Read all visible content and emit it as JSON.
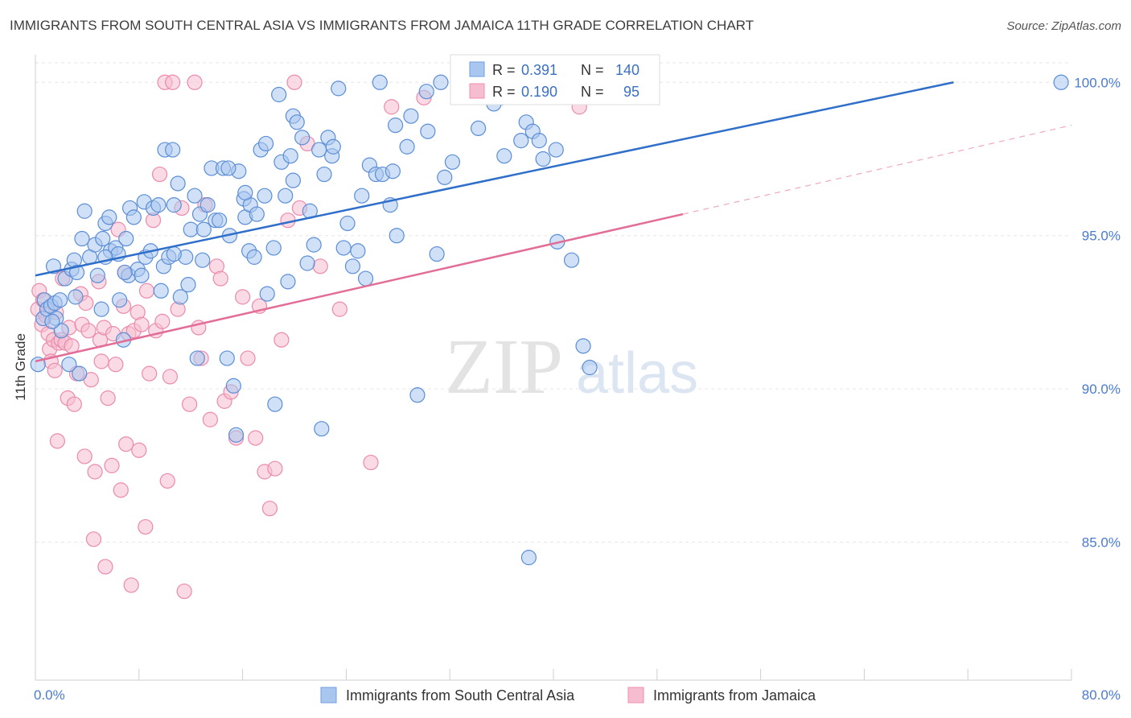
{
  "header": {
    "title": "IMMIGRANTS FROM SOUTH CENTRAL ASIA VS IMMIGRANTS FROM JAMAICA 11TH GRADE CORRELATION CHART",
    "source": "Source: ZipAtlas.com"
  },
  "watermark": {
    "zip": "ZIP",
    "atlas": "atlas"
  },
  "stats_legend": {
    "r_label": "R =",
    "n_label": "N =",
    "rows": [
      {
        "r": "0.391",
        "n": "140",
        "color": "#6f9de0"
      },
      {
        "r": "0.190",
        "n": "95",
        "color": "#f08eb0"
      }
    ]
  },
  "colors": {
    "blue_fill": "#a9c6ef",
    "blue_stroke": "#5b8ed6",
    "blue_line": "#2f6fc9",
    "pink_fill": "#f6bdd0",
    "pink_stroke": "#eb8aaa",
    "pink_line": "#e26e97"
  },
  "chart_data": {
    "type": "scatter",
    "title": "IMMIGRANTS FROM SOUTH CENTRAL ASIA VS IMMIGRANTS FROM JAMAICA 11TH GRADE CORRELATION CHART",
    "xlabel": "",
    "ylabel": "11th Grade",
    "x_tick_labels": [
      "0.0%",
      "80.0%"
    ],
    "y_tick_labels": [
      "85.0%",
      "90.0%",
      "95.0%",
      "100.0%"
    ],
    "y_ticks": [
      85,
      90,
      95,
      100
    ],
    "xlim": [
      0,
      80
    ],
    "ylim": [
      80.5,
      100.9
    ],
    "grid": true,
    "legend_position": "top",
    "series": [
      {
        "name": "Immigrants from South Central Asia",
        "r": 0.391,
        "n": 140,
        "trend": {
          "x": [
            0,
            70.9
          ],
          "y": [
            93.7,
            100.0
          ]
        },
        "points": [
          [
            0.2,
            90.8
          ],
          [
            0.6,
            92.3
          ],
          [
            0.7,
            92.9
          ],
          [
            0.9,
            92.6
          ],
          [
            1.2,
            92.7
          ],
          [
            1.4,
            94.0
          ],
          [
            1.5,
            92.8
          ],
          [
            1.6,
            92.3
          ],
          [
            1.9,
            92.9
          ],
          [
            2.3,
            93.6
          ],
          [
            2.6,
            90.8
          ],
          [
            2.8,
            93.9
          ],
          [
            3.0,
            94.2
          ],
          [
            3.2,
            93.8
          ],
          [
            3.4,
            90.5
          ],
          [
            3.6,
            94.9
          ],
          [
            3.8,
            95.8
          ],
          [
            4.2,
            94.3
          ],
          [
            4.6,
            94.7
          ],
          [
            4.8,
            93.7
          ],
          [
            5.1,
            92.6
          ],
          [
            5.2,
            94.9
          ],
          [
            5.4,
            95.4
          ],
          [
            5.7,
            95.6
          ],
          [
            5.8,
            94.5
          ],
          [
            6.2,
            94.6
          ],
          [
            6.4,
            94.4
          ],
          [
            6.5,
            92.9
          ],
          [
            6.8,
            91.6
          ],
          [
            7.0,
            94.9
          ],
          [
            7.2,
            93.7
          ],
          [
            7.3,
            95.9
          ],
          [
            7.6,
            95.6
          ],
          [
            7.9,
            93.9
          ],
          [
            8.2,
            93.7
          ],
          [
            8.4,
            96.1
          ],
          [
            8.5,
            94.3
          ],
          [
            8.9,
            94.5
          ],
          [
            9.1,
            95.9
          ],
          [
            9.5,
            96.0
          ],
          [
            9.7,
            93.2
          ],
          [
            9.9,
            94.0
          ],
          [
            10.0,
            97.8
          ],
          [
            10.3,
            94.3
          ],
          [
            10.6,
            97.8
          ],
          [
            10.7,
            96.0
          ],
          [
            11.0,
            96.7
          ],
          [
            11.2,
            93.0
          ],
          [
            11.6,
            94.3
          ],
          [
            11.8,
            93.4
          ],
          [
            12.0,
            95.2
          ],
          [
            12.3,
            96.3
          ],
          [
            12.5,
            91.0
          ],
          [
            12.7,
            95.7
          ],
          [
            13.0,
            95.2
          ],
          [
            13.3,
            96.0
          ],
          [
            13.6,
            97.2
          ],
          [
            13.9,
            95.5
          ],
          [
            14.2,
            95.5
          ],
          [
            14.5,
            97.2
          ],
          [
            14.8,
            91.0
          ],
          [
            15.0,
            95.0
          ],
          [
            15.3,
            90.1
          ],
          [
            15.5,
            88.5
          ],
          [
            15.7,
            97.1
          ],
          [
            16.1,
            96.2
          ],
          [
            16.2,
            95.6
          ],
          [
            16.5,
            94.5
          ],
          [
            16.6,
            96.0
          ],
          [
            16.9,
            94.3
          ],
          [
            17.1,
            95.7
          ],
          [
            17.4,
            97.8
          ],
          [
            17.7,
            96.3
          ],
          [
            17.8,
            98.0
          ],
          [
            17.9,
            93.1
          ],
          [
            18.4,
            94.6
          ],
          [
            18.5,
            89.5
          ],
          [
            18.8,
            99.6
          ],
          [
            19.0,
            97.4
          ],
          [
            19.3,
            96.3
          ],
          [
            19.5,
            93.5
          ],
          [
            19.7,
            97.6
          ],
          [
            19.9,
            98.9
          ],
          [
            20.2,
            98.7
          ],
          [
            20.6,
            98.2
          ],
          [
            21.0,
            94.1
          ],
          [
            21.2,
            95.8
          ],
          [
            21.5,
            94.7
          ],
          [
            21.9,
            97.8
          ],
          [
            22.1,
            88.7
          ],
          [
            22.3,
            97.0
          ],
          [
            22.6,
            98.2
          ],
          [
            22.9,
            97.6
          ],
          [
            23.0,
            97.9
          ],
          [
            23.4,
            99.8
          ],
          [
            23.8,
            94.6
          ],
          [
            24.1,
            95.4
          ],
          [
            24.5,
            94.0
          ],
          [
            24.9,
            94.5
          ],
          [
            25.2,
            96.3
          ],
          [
            25.5,
            93.6
          ],
          [
            25.8,
            97.3
          ],
          [
            26.3,
            97.0
          ],
          [
            26.6,
            100.0
          ],
          [
            26.8,
            97.0
          ],
          [
            27.4,
            96.0
          ],
          [
            27.6,
            97.1
          ],
          [
            27.8,
            98.6
          ],
          [
            28.7,
            97.9
          ],
          [
            29.0,
            98.9
          ],
          [
            29.5,
            89.8
          ],
          [
            30.2,
            99.7
          ],
          [
            30.3,
            98.4
          ],
          [
            31.0,
            94.4
          ],
          [
            31.3,
            100.0
          ],
          [
            31.6,
            96.9
          ],
          [
            32.2,
            97.4
          ],
          [
            33.0,
            100.0
          ],
          [
            34.2,
            98.5
          ],
          [
            35.4,
            99.3
          ],
          [
            36.0,
            99.5
          ],
          [
            36.2,
            97.6
          ],
          [
            37.5,
            98.1
          ],
          [
            37.9,
            98.7
          ],
          [
            38.1,
            84.5
          ],
          [
            38.4,
            98.4
          ],
          [
            38.9,
            98.1
          ],
          [
            39.2,
            97.5
          ],
          [
            40.2,
            97.8
          ],
          [
            40.3,
            94.8
          ],
          [
            41.4,
            94.2
          ],
          [
            42.3,
            91.4
          ],
          [
            42.8,
            90.7
          ],
          [
            43.5,
            100.0
          ],
          [
            36.5,
            99.8
          ],
          [
            34.8,
            99.9
          ],
          [
            16.2,
            96.4
          ],
          [
            14.9,
            97.2
          ],
          [
            19.9,
            96.8
          ],
          [
            12.9,
            94.2
          ],
          [
            10.7,
            94.4
          ],
          [
            6.9,
            93.8
          ],
          [
            5.4,
            94.3
          ],
          [
            3.1,
            93.0
          ],
          [
            2.0,
            91.9
          ],
          [
            1.3,
            92.2
          ],
          [
            27.9,
            95.0
          ],
          [
            79.2,
            100.0
          ]
        ]
      },
      {
        "name": "Immigrants from Jamaica",
        "r": 0.19,
        "n": 95,
        "trend": {
          "x": [
            0,
            50
          ],
          "y": [
            90.9,
            95.7
          ]
        },
        "trend_extension": {
          "x": [
            50,
            80
          ],
          "y": [
            95.7,
            98.6
          ]
        },
        "points": [
          [
            0.2,
            92.6
          ],
          [
            0.3,
            93.2
          ],
          [
            0.5,
            92.1
          ],
          [
            0.6,
            92.9
          ],
          [
            0.8,
            92.4
          ],
          [
            1.0,
            91.8
          ],
          [
            1.1,
            91.3
          ],
          [
            1.2,
            90.9
          ],
          [
            1.4,
            91.6
          ],
          [
            1.5,
            90.6
          ],
          [
            1.7,
            88.3
          ],
          [
            1.8,
            91.5
          ],
          [
            2.0,
            91.6
          ],
          [
            2.1,
            93.6
          ],
          [
            2.3,
            91.5
          ],
          [
            2.5,
            89.7
          ],
          [
            2.6,
            92.0
          ],
          [
            2.8,
            91.4
          ],
          [
            3.0,
            89.5
          ],
          [
            3.2,
            90.5
          ],
          [
            3.5,
            93.1
          ],
          [
            3.6,
            92.1
          ],
          [
            3.8,
            87.8
          ],
          [
            3.9,
            92.8
          ],
          [
            4.1,
            91.9
          ],
          [
            4.3,
            90.3
          ],
          [
            4.5,
            85.1
          ],
          [
            4.6,
            87.3
          ],
          [
            4.9,
            93.5
          ],
          [
            5.0,
            91.6
          ],
          [
            5.1,
            90.9
          ],
          [
            5.3,
            92.0
          ],
          [
            5.4,
            84.2
          ],
          [
            5.6,
            89.7
          ],
          [
            5.9,
            87.5
          ],
          [
            6.0,
            91.8
          ],
          [
            6.2,
            90.8
          ],
          [
            6.4,
            95.2
          ],
          [
            6.6,
            86.7
          ],
          [
            6.8,
            92.7
          ],
          [
            6.9,
            93.8
          ],
          [
            7.0,
            88.2
          ],
          [
            7.2,
            91.8
          ],
          [
            7.4,
            83.6
          ],
          [
            7.6,
            91.9
          ],
          [
            7.9,
            92.5
          ],
          [
            8.0,
            88.0
          ],
          [
            8.2,
            92.1
          ],
          [
            8.5,
            85.5
          ],
          [
            8.6,
            93.2
          ],
          [
            8.8,
            90.5
          ],
          [
            9.1,
            95.5
          ],
          [
            9.3,
            91.9
          ],
          [
            9.6,
            97.0
          ],
          [
            9.8,
            92.2
          ],
          [
            10.0,
            100.0
          ],
          [
            10.2,
            87.0
          ],
          [
            10.4,
            90.4
          ],
          [
            10.6,
            100.0
          ],
          [
            11.0,
            92.6
          ],
          [
            11.3,
            95.9
          ],
          [
            11.5,
            83.4
          ],
          [
            11.9,
            89.5
          ],
          [
            12.3,
            100.0
          ],
          [
            12.6,
            92.0
          ],
          [
            12.8,
            91.0
          ],
          [
            13.1,
            96.0
          ],
          [
            13.5,
            89.0
          ],
          [
            14.0,
            94.0
          ],
          [
            14.3,
            93.6
          ],
          [
            14.6,
            89.6
          ],
          [
            15.1,
            89.9
          ],
          [
            15.5,
            88.4
          ],
          [
            16.0,
            93.0
          ],
          [
            16.4,
            91.0
          ],
          [
            17.0,
            88.4
          ],
          [
            17.3,
            92.7
          ],
          [
            17.7,
            87.3
          ],
          [
            18.1,
            86.1
          ],
          [
            18.5,
            87.4
          ],
          [
            19.0,
            91.6
          ],
          [
            19.5,
            95.5
          ],
          [
            20.0,
            100.0
          ],
          [
            20.4,
            95.9
          ],
          [
            21.0,
            98.0
          ],
          [
            22.0,
            94.0
          ],
          [
            23.5,
            92.6
          ],
          [
            25.9,
            87.6
          ],
          [
            27.5,
            99.2
          ],
          [
            30.0,
            99.5
          ],
          [
            33.4,
            100.0
          ],
          [
            36.0,
            100.0
          ],
          [
            42.0,
            99.2
          ],
          [
            44.0,
            100.0
          ],
          [
            1.6,
            92.5
          ]
        ]
      }
    ]
  },
  "bottom_legend": {
    "items": [
      {
        "label": "Immigrants from South Central Asia"
      },
      {
        "label": "Immigrants from Jamaica"
      }
    ]
  }
}
